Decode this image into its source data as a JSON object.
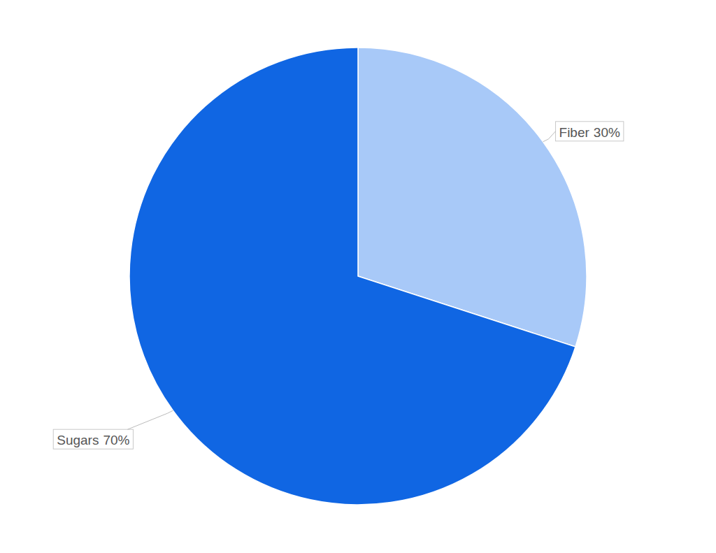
{
  "chart_data": {
    "type": "pie",
    "categories": [
      "Fiber",
      "Sugars"
    ],
    "values": [
      30,
      70
    ],
    "value_labels": [
      "30%",
      "70%"
    ],
    "colors": [
      "#a8c9f8",
      "#1066e3"
    ],
    "data_labels": true
  }
}
